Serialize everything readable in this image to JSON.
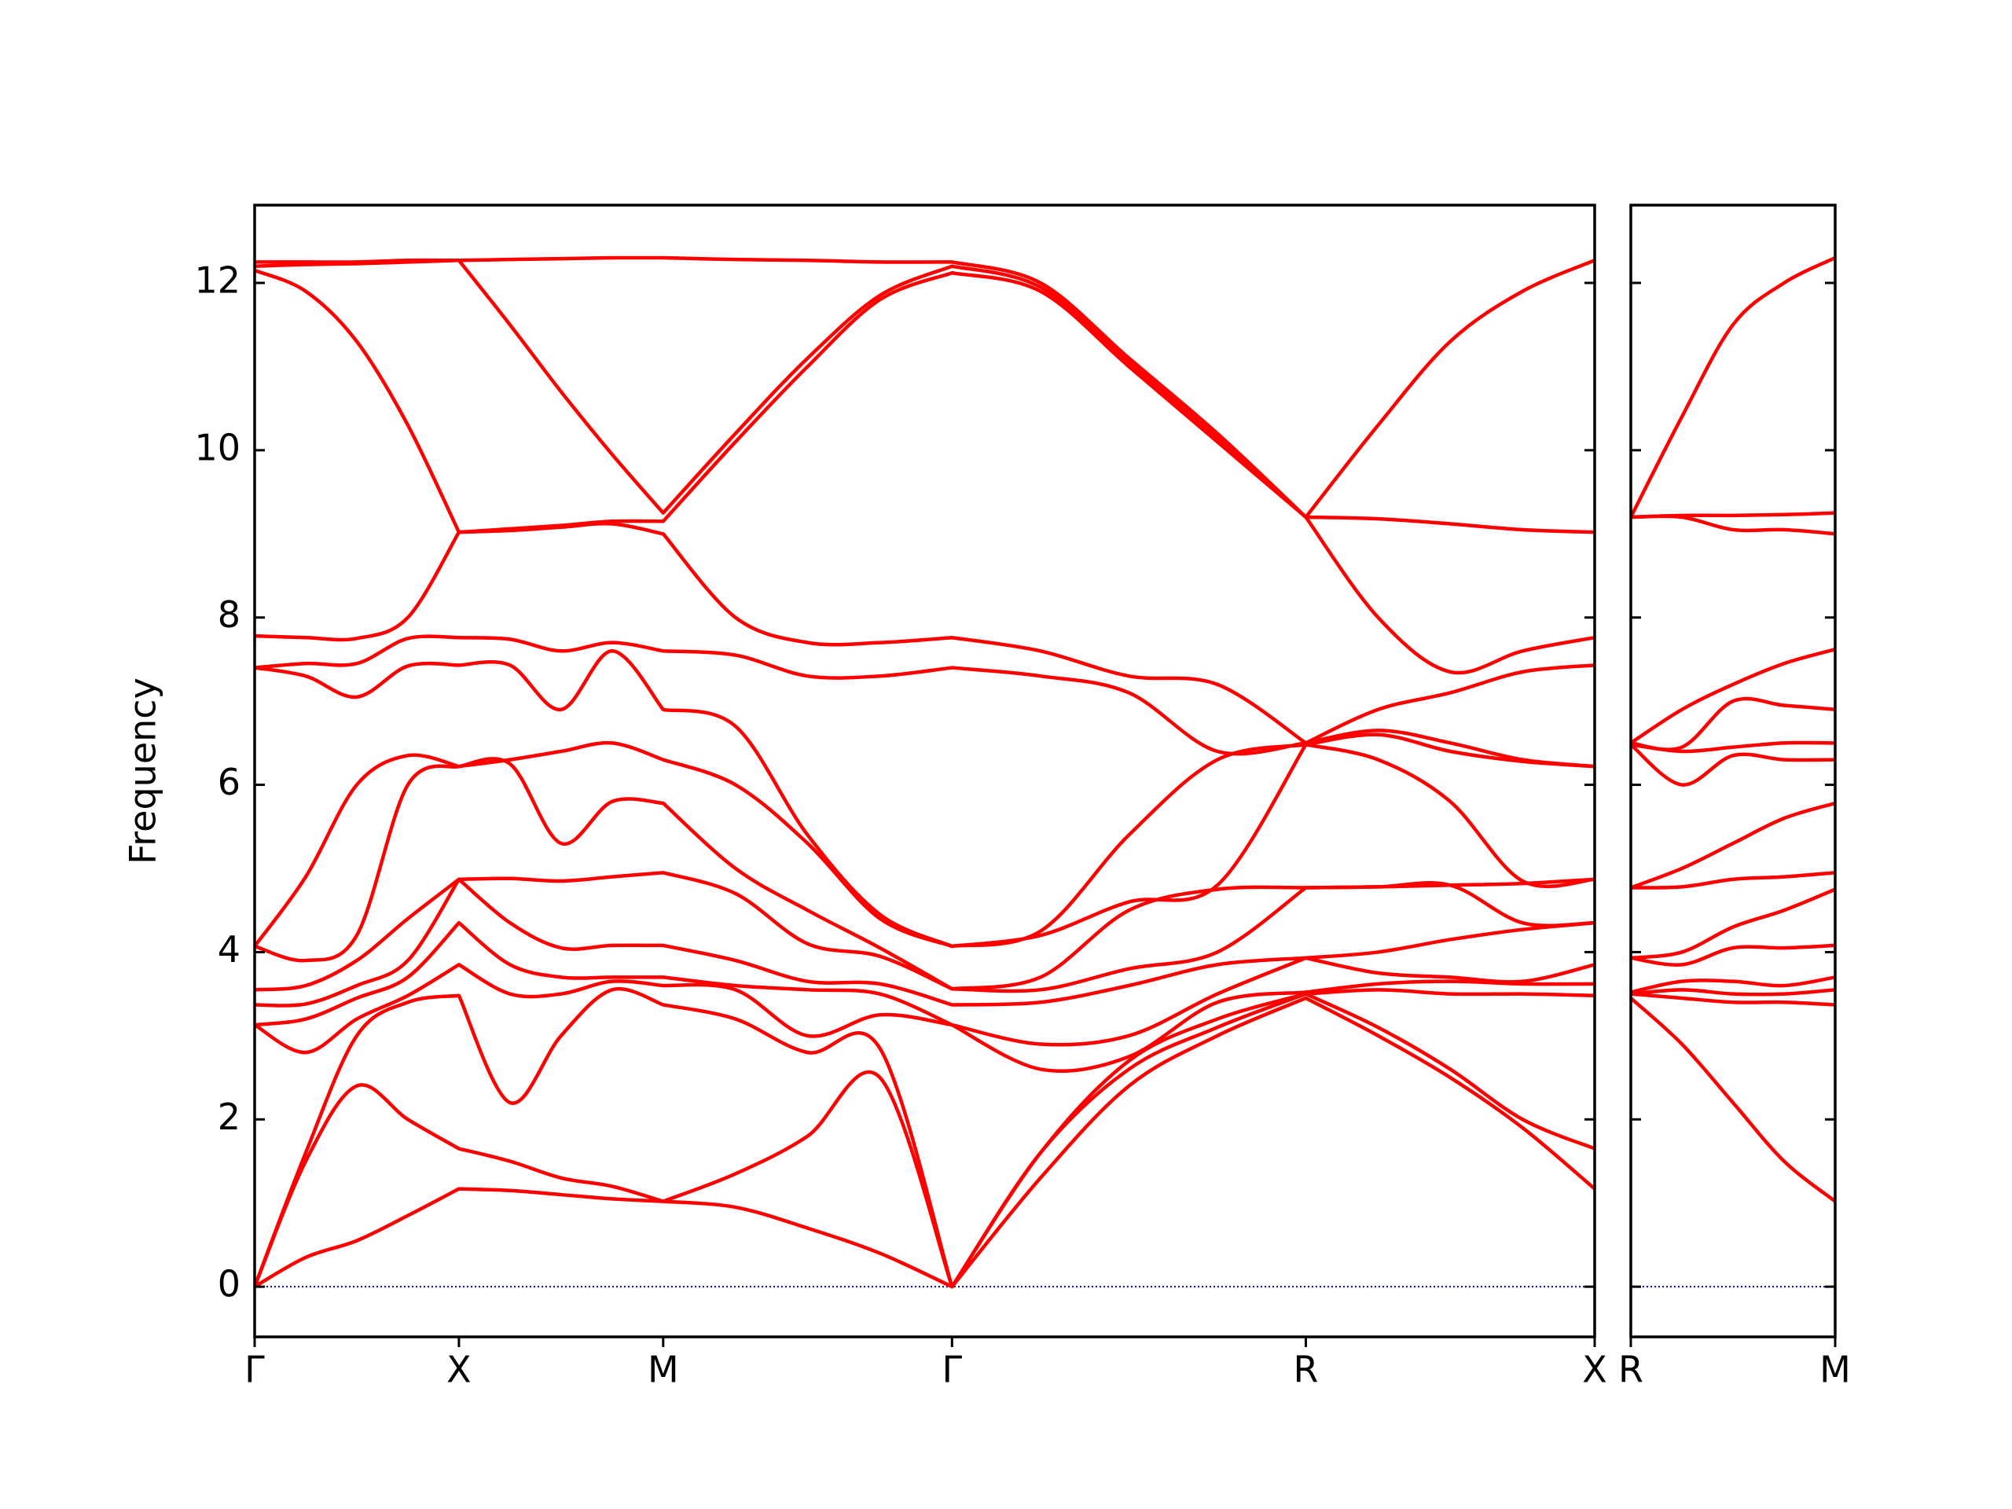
{
  "chart_data": [
    {
      "type": "line",
      "ylabel": "Frequency",
      "color": "#ff0000",
      "zero_line": {
        "y": 0,
        "color": "#0000a0"
      },
      "xlim": [
        0,
        6.56
      ],
      "ylim": [
        -0.6,
        12.93
      ],
      "yticks": [
        0,
        2,
        4,
        6,
        8,
        10,
        12
      ],
      "ytick_labels": true,
      "xticks": [
        {
          "value": 0,
          "label": "Γ"
        },
        {
          "value": 1,
          "label": "X"
        },
        {
          "value": 2,
          "label": "M"
        },
        {
          "value": 3.414,
          "label": "Γ"
        },
        {
          "value": 5.146,
          "label": "R"
        },
        {
          "value": 6.56,
          "label": "X"
        }
      ],
      "x": [
        0,
        0.25,
        0.5,
        0.75,
        1,
        1.25,
        1.5,
        1.75,
        2,
        2.354,
        2.707,
        3.061,
        3.414,
        3.847,
        4.28,
        4.713,
        5.146,
        5.5,
        5.853,
        6.207,
        6.56
      ],
      "series": [
        {
          "values": [
            0,
            0.35,
            0.55,
            0.85,
            1.17,
            1.15,
            1.1,
            1.05,
            1.02,
            0.95,
            0.7,
            0.4,
            0,
            1.3,
            2.4,
            3.0,
            3.45,
            3.0,
            2.5,
            1.9,
            1.17
          ]
        },
        {
          "values": [
            0,
            1.5,
            2.4,
            2.0,
            1.65,
            1.5,
            1.3,
            1.2,
            1.02,
            1.35,
            1.8,
            2.5,
            0,
            1.6,
            2.6,
            3.1,
            3.5,
            3.1,
            2.6,
            2.0,
            1.65
          ]
        },
        {
          "values": [
            0,
            1.6,
            3.0,
            3.4,
            3.48,
            2.2,
            3.0,
            3.55,
            3.37,
            3.2,
            2.8,
            2.85,
            0,
            1.6,
            2.7,
            3.2,
            3.5,
            3.55,
            3.5,
            3.5,
            3.48
          ]
        },
        {
          "values": [
            3.13,
            2.8,
            3.2,
            3.48,
            3.85,
            3.5,
            3.5,
            3.65,
            3.6,
            3.55,
            3.0,
            3.25,
            3.13,
            2.6,
            2.75,
            3.4,
            3.52,
            3.62,
            3.65,
            3.62,
            3.62
          ]
        },
        {
          "values": [
            3.13,
            3.2,
            3.45,
            3.7,
            4.35,
            3.85,
            3.7,
            3.7,
            3.7,
            3.6,
            3.55,
            3.5,
            3.13,
            2.9,
            3.0,
            3.5,
            3.93,
            3.75,
            3.7,
            3.65,
            3.85
          ]
        },
        {
          "values": [
            3.37,
            3.38,
            3.6,
            3.9,
            4.87,
            4.35,
            4.05,
            4.08,
            4.08,
            3.9,
            3.65,
            3.62,
            3.37,
            3.4,
            3.6,
            3.85,
            3.93,
            4.0,
            4.15,
            4.27,
            4.35
          ]
        },
        {
          "values": [
            3.55,
            3.6,
            3.9,
            4.4,
            4.87,
            4.88,
            4.85,
            4.9,
            4.95,
            4.7,
            4.1,
            3.95,
            3.56,
            3.55,
            3.8,
            4.0,
            4.77,
            4.78,
            4.8,
            4.35,
            4.35
          ]
        },
        {
          "values": [
            4.07,
            3.9,
            4.2,
            6.0,
            6.22,
            6.25,
            5.3,
            5.8,
            5.78,
            5.0,
            4.5,
            4.05,
            3.56,
            3.7,
            4.5,
            4.75,
            4.77,
            4.78,
            4.8,
            4.82,
            4.87
          ]
        },
        {
          "values": [
            4.07,
            4.9,
            6.0,
            6.35,
            6.22,
            6.3,
            6.4,
            6.5,
            6.3,
            6.0,
            5.3,
            4.4,
            4.07,
            4.2,
            4.6,
            4.8,
            6.48,
            6.3,
            5.8,
            4.85,
            4.87
          ]
        },
        {
          "values": [
            7.4,
            7.3,
            7.05,
            7.42,
            7.43,
            7.43,
            6.9,
            7.6,
            6.9,
            6.7,
            5.4,
            4.45,
            4.07,
            4.25,
            5.4,
            6.3,
            6.48,
            6.6,
            6.4,
            6.28,
            6.22
          ]
        },
        {
          "values": [
            7.4,
            7.45,
            7.45,
            7.75,
            7.76,
            7.74,
            7.6,
            7.7,
            7.6,
            7.55,
            7.3,
            7.3,
            7.4,
            7.3,
            7.1,
            6.4,
            6.5,
            6.65,
            6.5,
            6.3,
            6.22
          ]
        },
        {
          "values": [
            7.78,
            7.76,
            7.75,
            8.0,
            9.02,
            9.04,
            9.08,
            9.12,
            9.0,
            8.0,
            7.7,
            7.7,
            7.76,
            7.6,
            7.3,
            7.2,
            6.5,
            6.9,
            7.1,
            7.35,
            7.43
          ]
        },
        {
          "values": [
            12.15,
            11.9,
            11.3,
            10.3,
            9.02,
            9.06,
            9.1,
            9.15,
            9.15,
            10.1,
            11.0,
            11.8,
            12.12,
            11.9,
            11.0,
            10.1,
            9.2,
            8.0,
            7.35,
            7.6,
            7.76
          ]
        },
        {
          "values": [
            12.2,
            12.22,
            12.23,
            12.25,
            12.27,
            11.5,
            10.7,
            9.95,
            9.25,
            10.2,
            11.1,
            11.85,
            12.2,
            11.95,
            11.05,
            10.15,
            9.2,
            9.18,
            9.12,
            9.05,
            9.02
          ]
        },
        {
          "values": [
            12.25,
            12.25,
            12.25,
            12.27,
            12.27,
            12.28,
            12.29,
            12.3,
            12.3,
            12.28,
            12.27,
            12.25,
            12.25,
            12.0,
            11.1,
            10.2,
            9.2,
            10.3,
            11.3,
            11.9,
            12.27
          ]
        }
      ]
    },
    {
      "type": "line",
      "color": "#ff0000",
      "zero_line": {
        "y": 0,
        "color": "#0000a0"
      },
      "xlim": [
        0,
        1
      ],
      "ylim": [
        -0.6,
        12.93
      ],
      "yticks": [
        0,
        2,
        4,
        6,
        8,
        10,
        12
      ],
      "ytick_labels": false,
      "xticks": [
        {
          "value": 0,
          "label": "R"
        },
        {
          "value": 1,
          "label": "M"
        }
      ],
      "x": [
        0,
        0.25,
        0.5,
        0.75,
        1
      ],
      "series": [
        {
          "values": [
            3.45,
            2.9,
            2.2,
            1.5,
            1.02
          ]
        },
        {
          "values": [
            3.5,
            3.45,
            3.4,
            3.4,
            3.37
          ]
        },
        {
          "values": [
            3.5,
            3.55,
            3.5,
            3.5,
            3.55
          ]
        },
        {
          "values": [
            3.52,
            3.65,
            3.65,
            3.6,
            3.7
          ]
        },
        {
          "values": [
            3.93,
            3.85,
            4.05,
            4.05,
            4.08
          ]
        },
        {
          "values": [
            3.93,
            4.0,
            4.3,
            4.5,
            4.75
          ]
        },
        {
          "values": [
            4.77,
            4.78,
            4.87,
            4.9,
            4.95
          ]
        },
        {
          "values": [
            4.77,
            5.0,
            5.3,
            5.6,
            5.78
          ]
        },
        {
          "values": [
            6.48,
            6.0,
            6.35,
            6.3,
            6.3
          ]
        },
        {
          "values": [
            6.48,
            6.4,
            6.45,
            6.5,
            6.5
          ]
        },
        {
          "values": [
            6.5,
            6.45,
            7.0,
            6.95,
            6.9
          ]
        },
        {
          "values": [
            6.5,
            6.9,
            7.2,
            7.45,
            7.62
          ]
        },
        {
          "values": [
            9.2,
            9.2,
            9.05,
            9.05,
            9.0
          ]
        },
        {
          "values": [
            9.2,
            9.22,
            9.22,
            9.23,
            9.25
          ]
        },
        {
          "values": [
            9.2,
            10.4,
            11.5,
            12.0,
            12.3
          ]
        }
      ]
    }
  ]
}
